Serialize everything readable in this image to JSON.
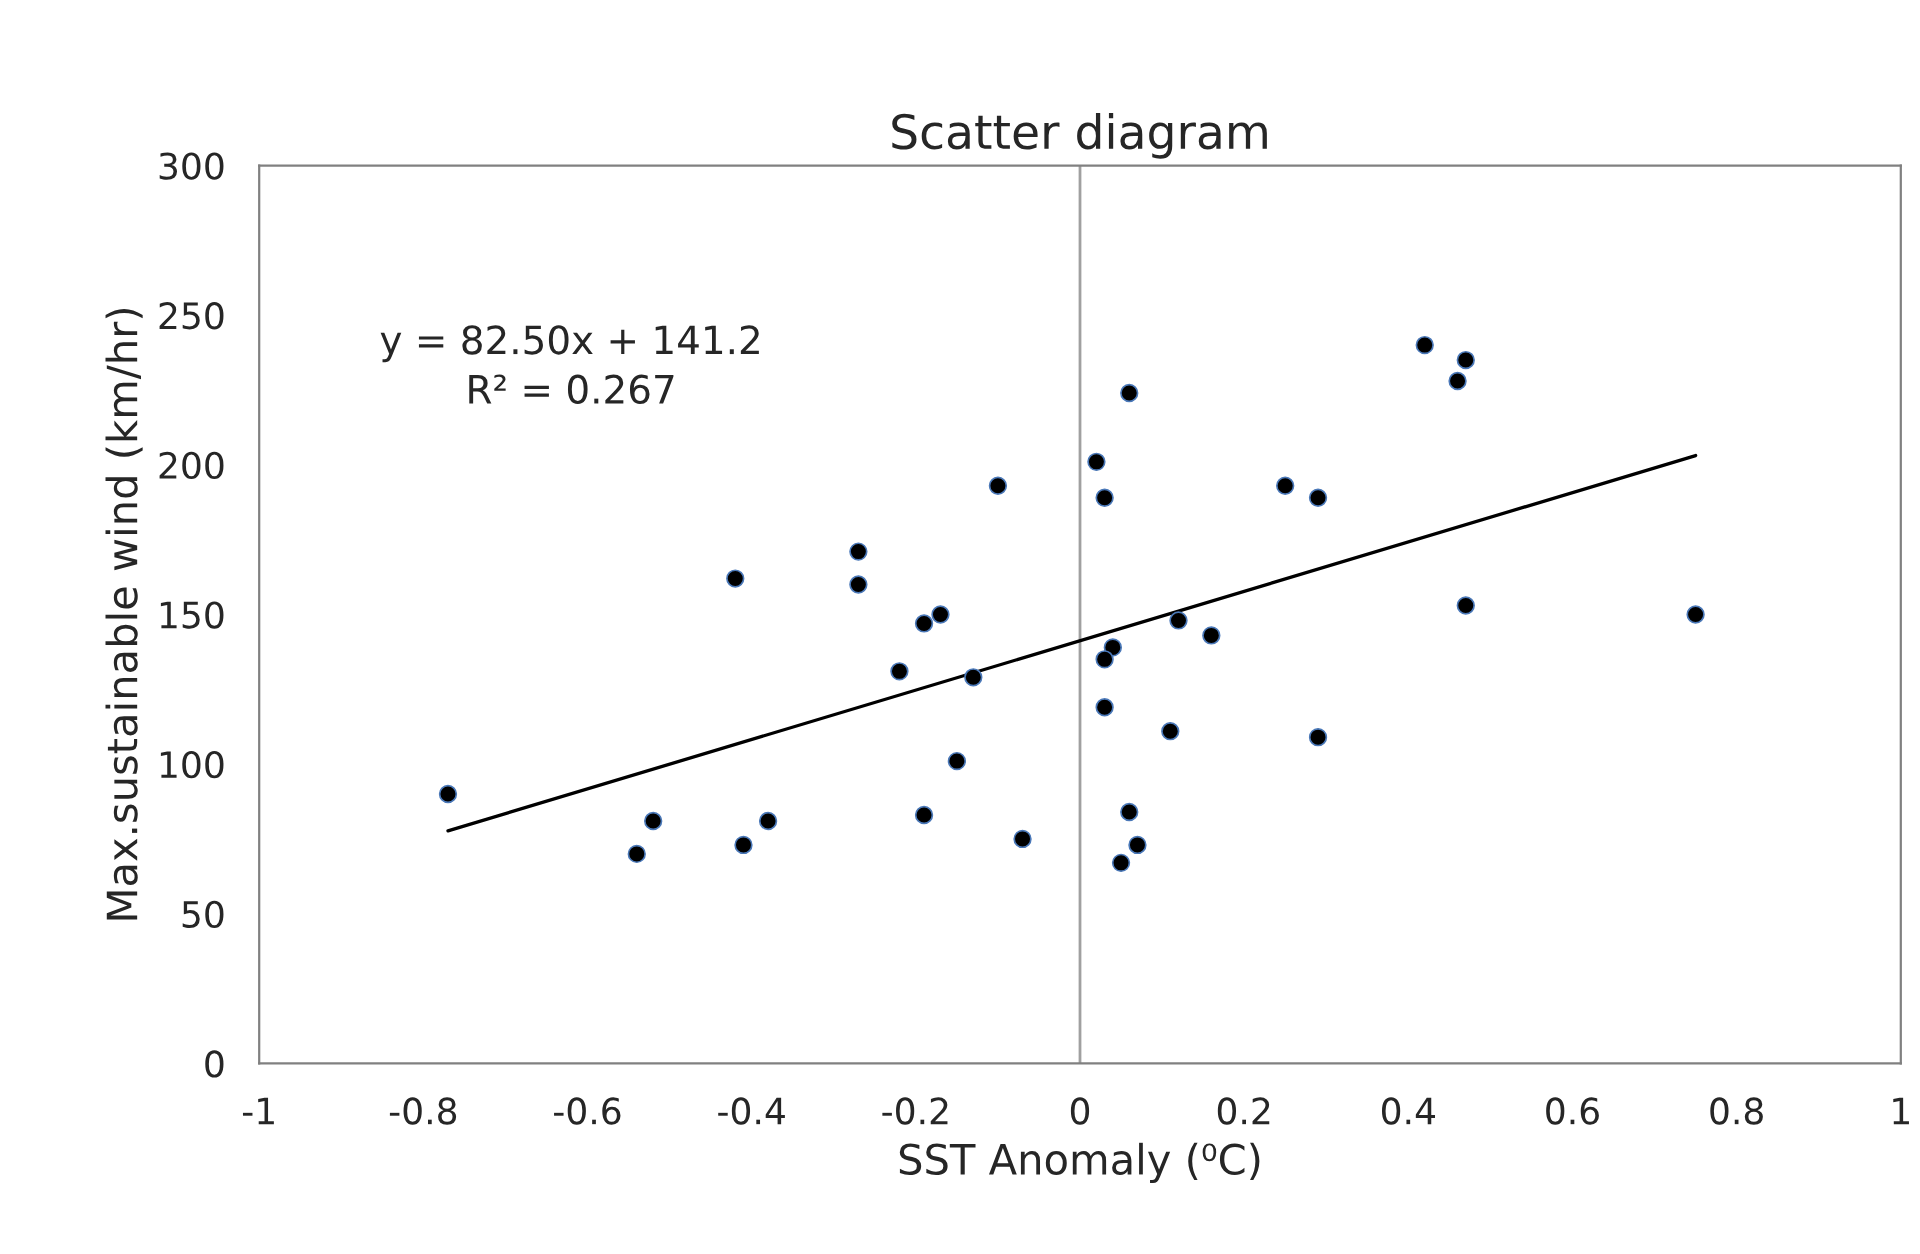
{
  "chart_data": {
    "type": "scatter",
    "title": "Scatter diagram",
    "xlabel": "SST Anomaly (⁰C)",
    "ylabel": "Max.sustainable wind (km/hr)",
    "annotations": [
      "y = 82.50x + 141.2",
      "R² = 0.267"
    ],
    "xlim": [
      -1,
      1
    ],
    "xticks": [
      -1,
      -0.8,
      -0.6,
      -0.4,
      -0.2,
      0,
      0.2,
      0.4,
      0.6,
      0.8,
      1
    ],
    "ylim": [
      0,
      300
    ],
    "yticks": [
      0,
      50,
      100,
      150,
      200,
      250,
      300
    ],
    "grid": false,
    "ref_lines": [
      {
        "axis": "x",
        "value": 0,
        "color": "#a0a0a0"
      }
    ],
    "series": [
      {
        "marker": "circle",
        "color": "#000000",
        "x": [
          -0.77,
          -0.52,
          -0.54,
          -0.41,
          -0.38,
          -0.42,
          -0.27,
          -0.27,
          -0.19,
          -0.17,
          -0.22,
          -0.13,
          -0.15,
          -0.19,
          -0.07,
          -0.1,
          0.06,
          0.02,
          0.03,
          0.25,
          0.29,
          0.42,
          0.47,
          0.46,
          0.47,
          0.12,
          0.16,
          0.04,
          0.03,
          0.03,
          0.11,
          0.29,
          0.06,
          0.07,
          0.05,
          0.75
        ],
        "values": [
          90,
          81,
          70,
          73,
          81,
          162,
          171,
          160,
          147,
          150,
          131,
          129,
          101,
          83,
          75,
          193,
          224,
          201,
          189,
          193,
          189,
          240,
          235,
          228,
          153,
          148,
          143,
          139,
          135,
          119,
          111,
          109,
          84,
          73,
          67,
          150
        ]
      },
      {
        "type": "line",
        "marker": "none",
        "color": "#000000",
        "x": [
          -0.77,
          0.75
        ],
        "values": [
          77.7,
          203.1
        ]
      }
    ]
  }
}
